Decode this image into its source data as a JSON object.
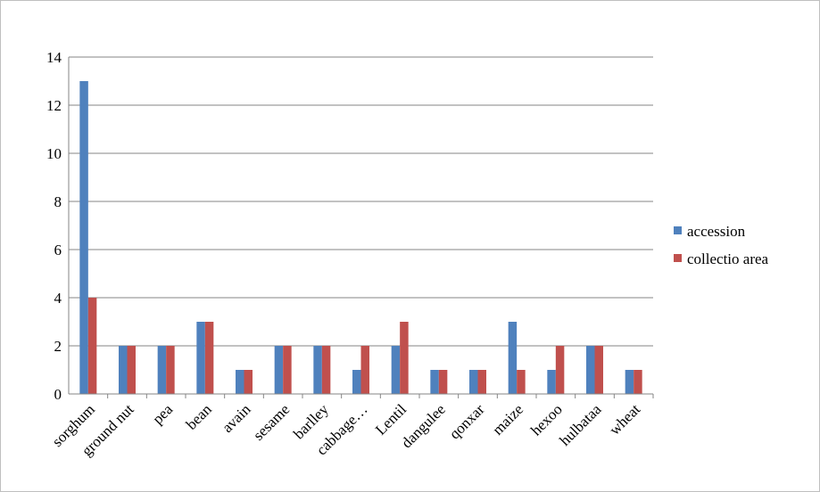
{
  "chart_data": {
    "type": "bar",
    "categories": [
      "sorghum",
      "ground nut",
      "pea",
      "bean",
      "avain",
      "sesame",
      "barlley",
      "cabbage…",
      "Lentil",
      "dangulee",
      "qonxar",
      "maize",
      "hexoo",
      "hulbataa",
      "wheat"
    ],
    "series": [
      {
        "name": "accession",
        "color": "#4f81bd",
        "values": [
          13,
          2,
          2,
          3,
          1,
          2,
          2,
          1,
          2,
          1,
          1,
          3,
          1,
          2,
          1
        ]
      },
      {
        "name": "collectio area",
        "color": "#c0504d",
        "values": [
          4,
          2,
          2,
          3,
          1,
          2,
          2,
          2,
          3,
          1,
          1,
          1,
          2,
          2,
          1
        ]
      }
    ],
    "ylim": [
      0,
      14
    ],
    "yticks": [
      0,
      2,
      4,
      6,
      8,
      10,
      12,
      14
    ],
    "grid": true,
    "legend": "right"
  }
}
